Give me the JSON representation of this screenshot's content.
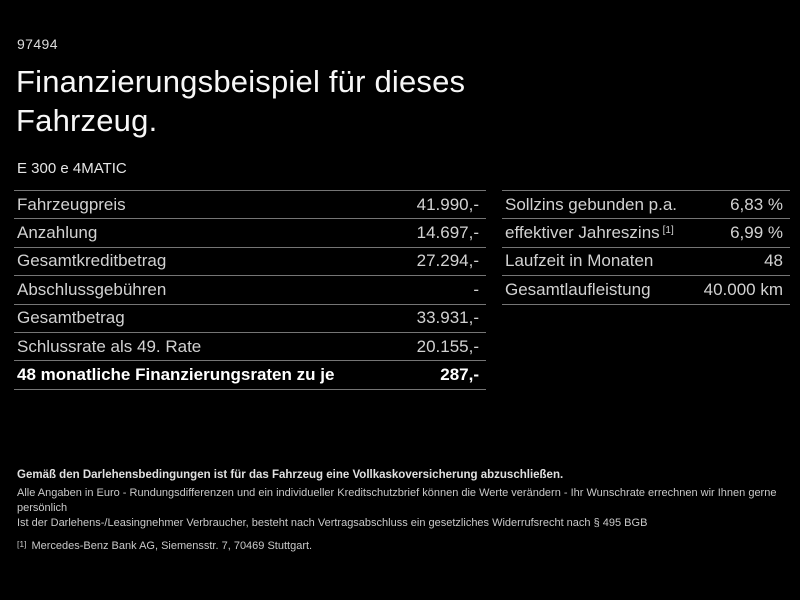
{
  "page": {
    "code": "97494",
    "title": "Finanzierungsbeispiel für dieses Fahrzeug.",
    "model": "E 300 e 4MATIC"
  },
  "financing_table": {
    "rows": [
      {
        "label": "Fahrzeugpreis",
        "value": "41.990,-"
      },
      {
        "label": "Anzahlung",
        "value": "14.697,-"
      },
      {
        "label": "Gesamtkreditbetrag",
        "value": "27.294,-"
      },
      {
        "label": "Abschlussgebühren",
        "value": "-"
      },
      {
        "label": "Gesamtbetrag",
        "value": "33.931,-"
      },
      {
        "label": "Schlussrate als 49. Rate",
        "value": "20.155,-"
      },
      {
        "label": "48 monatliche Finanzierungsraten zu je",
        "value": "287,-",
        "emphasis": true
      }
    ]
  },
  "conditions_table": {
    "rows": [
      {
        "label": "Sollzins gebunden p.a.",
        "value": "6,83 %"
      },
      {
        "label": "effektiver Jahreszins",
        "footnote_marker": "[1]",
        "value": "6,99 %"
      },
      {
        "label": "Laufzeit in Monaten",
        "value": "48"
      },
      {
        "label": "Gesamtlaufleistung",
        "value": "40.000 km"
      }
    ]
  },
  "footer": {
    "insurance_note": "Gemäß den Darlehensbedingungen ist für das Fahrzeug eine Vollkaskoversicherung abzuschließen.",
    "general_note": "Alle Angaben in Euro - Rundungsdifferenzen und ein individueller Kreditschutzbrief können die Werte verändern - Ihr Wunschrate errechnen wir Ihnen gerne persönlich",
    "withdrawal_note": "Ist der Darlehens-/Leasingnehmer Verbraucher, besteht nach Vertragsabschluss ein gesetzliches Widerrufsrecht nach § 495 BGB",
    "footnote": {
      "marker": "[1]",
      "text": "Mercedes-Benz Bank AG, Siemensstr. 7, 70469 Stuttgart."
    }
  },
  "colors": {
    "background": "#000000",
    "text_primary": "#f7f7f7",
    "text_secondary": "#d2d2d2",
    "divider": "#757575"
  }
}
